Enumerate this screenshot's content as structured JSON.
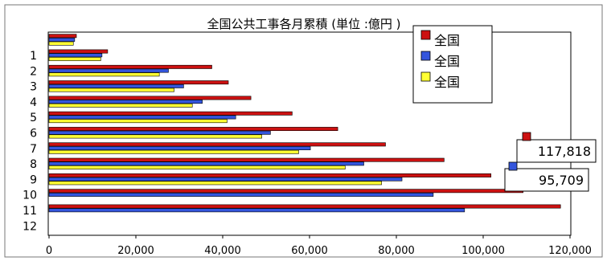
{
  "chart_data": {
    "type": "bar",
    "orientation": "horizontal",
    "title": "全国公共工事各月累積 (単位 :億円 )",
    "categories": [
      "",
      "1",
      "2",
      "3",
      "4",
      "5",
      "6",
      "7",
      "8",
      "9",
      "10",
      "11",
      "12"
    ],
    "xlim": [
      0,
      120000
    ],
    "xticks": [
      "0",
      "20,000",
      "40,000",
      "60,000",
      "80,000",
      "100,000",
      "120,000"
    ],
    "grid": false,
    "legend_position": "top-right",
    "colors": {
      "red": "#cc1111",
      "blue": "#3355dd",
      "yellow": "#ffff33"
    },
    "series": [
      {
        "name": "全国",
        "color": "red",
        "values": [
          6300,
          13500,
          37500,
          41300,
          46500,
          56000,
          66500,
          77500,
          91000,
          101800,
          109200,
          117818,
          null
        ]
      },
      {
        "name": "全国",
        "color": "blue",
        "values": [
          5900,
          12200,
          27500,
          31000,
          35300,
          43000,
          51000,
          60200,
          72500,
          81300,
          88500,
          95709,
          null
        ]
      },
      {
        "name": "全国",
        "color": "yellow",
        "values": [
          5600,
          11900,
          25400,
          28800,
          33000,
          41000,
          49000,
          57500,
          68200,
          76600,
          null,
          null,
          null
        ]
      }
    ],
    "annotations": [
      {
        "text": "117,818",
        "series": 0
      },
      {
        "text": "95,709",
        "series": 1
      }
    ]
  }
}
